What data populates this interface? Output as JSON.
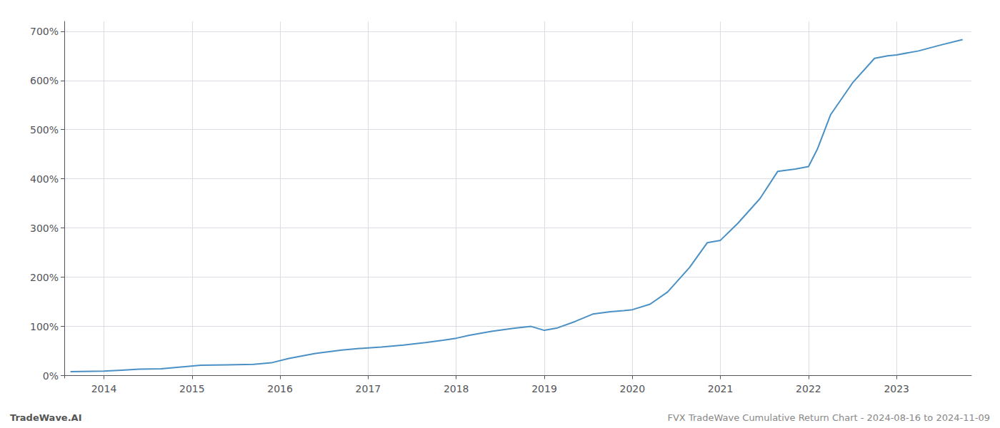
{
  "chart_data": {
    "type": "line",
    "annotations": [
      "TradeWave.AI",
      "FVX TradeWave Cumulative Return Chart - 2024-08-16 to 2024-11-09"
    ],
    "x": [
      2013.62,
      2014.0,
      2014.2,
      2014.4,
      2014.65,
      2014.9,
      2015.1,
      2015.4,
      2015.7,
      2015.9,
      2016.1,
      2016.4,
      2016.7,
      2016.9,
      2017.15,
      2017.4,
      2017.65,
      2017.85,
      2018.0,
      2018.15,
      2018.4,
      2018.65,
      2018.85,
      2019.0,
      2019.15,
      2019.35,
      2019.55,
      2019.75,
      2019.9,
      2020.0,
      2020.2,
      2020.4,
      2020.65,
      2020.85,
      2021.0,
      2021.2,
      2021.45,
      2021.65,
      2021.85,
      2022.0,
      2022.1,
      2022.25,
      2022.5,
      2022.75,
      2022.9,
      2023.0,
      2023.25,
      2023.5,
      2023.75
    ],
    "values": [
      8,
      9,
      11,
      13,
      14,
      18,
      21,
      22,
      23,
      26,
      35,
      45,
      52,
      55,
      58,
      62,
      67,
      72,
      76,
      82,
      90,
      96,
      100,
      92,
      97,
      110,
      125,
      130,
      132,
      134,
      145,
      170,
      220,
      270,
      275,
      310,
      360,
      415,
      420,
      425,
      460,
      530,
      595,
      645,
      650,
      652,
      660,
      672,
      683
    ],
    "color": "#4a90c4",
    "xlim": [
      2013.55,
      2023.85
    ],
    "xticks": [
      2014,
      2015,
      2016,
      2017,
      2018,
      2019,
      2020,
      2021,
      2022,
      2023
    ],
    "ylim": [
      -5,
      720
    ],
    "yticks": [
      {
        "value": 0,
        "label": "0%"
      },
      {
        "value": 100,
        "label": "100%"
      },
      {
        "value": 200,
        "label": "200%"
      },
      {
        "value": 300,
        "label": "300%"
      },
      {
        "value": 400,
        "label": "400%"
      },
      {
        "value": 500,
        "label": "500%"
      },
      {
        "value": 600,
        "label": "600%"
      },
      {
        "value": 700,
        "label": "700%"
      }
    ],
    "grid": true
  }
}
